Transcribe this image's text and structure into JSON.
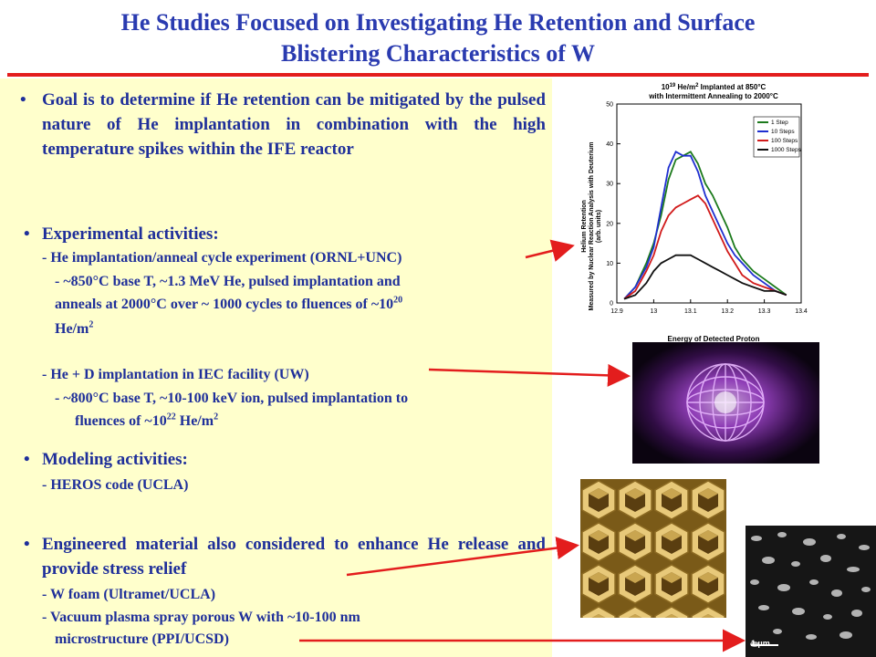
{
  "title": {
    "line1": "He Studies Focused on Investigating He Retention and Surface",
    "line2": "Blistering Characteristics of W"
  },
  "goal": {
    "bullet": "•",
    "text": "Goal is to determine if He retention can be mitigated by the pulsed nature of He implantation in combination with the high temperature spikes within the IFE reactor"
  },
  "experimental": {
    "heading": "Experimental activities:",
    "item1": "- He implantation/anneal cycle experiment  (ORNL+UNC)",
    "item1_detail_a": "-   ~850°C base T, ~1.3 MeV He, pulsed implantation and",
    "item1_detail_b": "anneals at 2000°C over ~ 1000 cycles to fluences of ~10",
    "item1_exp": "20",
    "item1_detail_c": "He/m",
    "item1_unit_exp": "2",
    "item2": "- He + D implantation in IEC facility (UW)",
    "item2_detail_a": "-   ~800°C base T, ~10-100 keV ion, pulsed implantation to",
    "item2_detail_b": "fluences of ~10",
    "item2_exp": "22",
    "item2_detail_c": " He/m",
    "item2_unit_exp": "2"
  },
  "modeling": {
    "heading": "Modeling activities:",
    "item1": "- HEROS code (UCLA)"
  },
  "engineered": {
    "heading": "Engineered material also considered to enhance He release and provide stress relief",
    "item1": "- W foam (Ultramet/UCLA)",
    "item2a": "- Vacuum plasma spray porous W with ~10-100 nm",
    "item2b": "microstructure (PPI/UCSD)"
  },
  "micrograph": {
    "scale_label": "1 µm"
  },
  "colors": {
    "title": "#2a3bb0",
    "text": "#1f2f9a",
    "rule": "#e31d1d",
    "panel": "#ffffcc",
    "arrow": "#e31d1d"
  },
  "chart_data": {
    "type": "line",
    "title_line1": "10",
    "title_exp": "19",
    "title_line1b": " He/m",
    "title_exp2": "2",
    "title_line1c": " Implanted at 850°C",
    "title_line2": "with Intermittent Annealing to 2000°C",
    "ylabel_1": "Helium Retention",
    "ylabel_2": "Measured by Nuclear Reaction Analysis with Deuterium",
    "ylabel_3": "(arb. units)",
    "xlabel": "Energy of Detected Proton",
    "xlim": [
      12.9,
      13.4
    ],
    "ylim": [
      0,
      50
    ],
    "xticks": [
      "12.9",
      "13",
      "13.1",
      "13.2",
      "13.3",
      "13.4"
    ],
    "yticks": [
      "0",
      "10",
      "20",
      "30",
      "40",
      "50"
    ],
    "legend_position": "top-right",
    "x": [
      12.92,
      12.95,
      12.98,
      13.0,
      13.02,
      13.04,
      13.06,
      13.08,
      13.1,
      13.12,
      13.14,
      13.16,
      13.18,
      13.2,
      13.22,
      13.24,
      13.27,
      13.3,
      13.33,
      13.36
    ],
    "series": [
      {
        "name": "1 Step",
        "color": "#1c7a1c",
        "values": [
          1,
          4,
          10,
          15,
          22,
          31,
          36,
          37,
          38,
          35,
          30,
          27,
          23,
          19,
          14,
          11,
          8,
          6,
          4,
          2
        ]
      },
      {
        "name": "10 Steps",
        "color": "#1f2fd0",
        "values": [
          1,
          4,
          9,
          14,
          24,
          34,
          38,
          37,
          37,
          33,
          27,
          23,
          19,
          15,
          12,
          10,
          7,
          5,
          3,
          2
        ]
      },
      {
        "name": "100 Steps",
        "color": "#d11a1a",
        "values": [
          1,
          3,
          8,
          12,
          18,
          22,
          24,
          25,
          26,
          27,
          25,
          21,
          17,
          13,
          10,
          7,
          5,
          4,
          3,
          2
        ]
      },
      {
        "name": "1000 Steps",
        "color": "#111111",
        "values": [
          1,
          2,
          5,
          8,
          10,
          11,
          12,
          12,
          12,
          11,
          10,
          9,
          8,
          7,
          6,
          5,
          4,
          3,
          3,
          2
        ]
      }
    ]
  }
}
